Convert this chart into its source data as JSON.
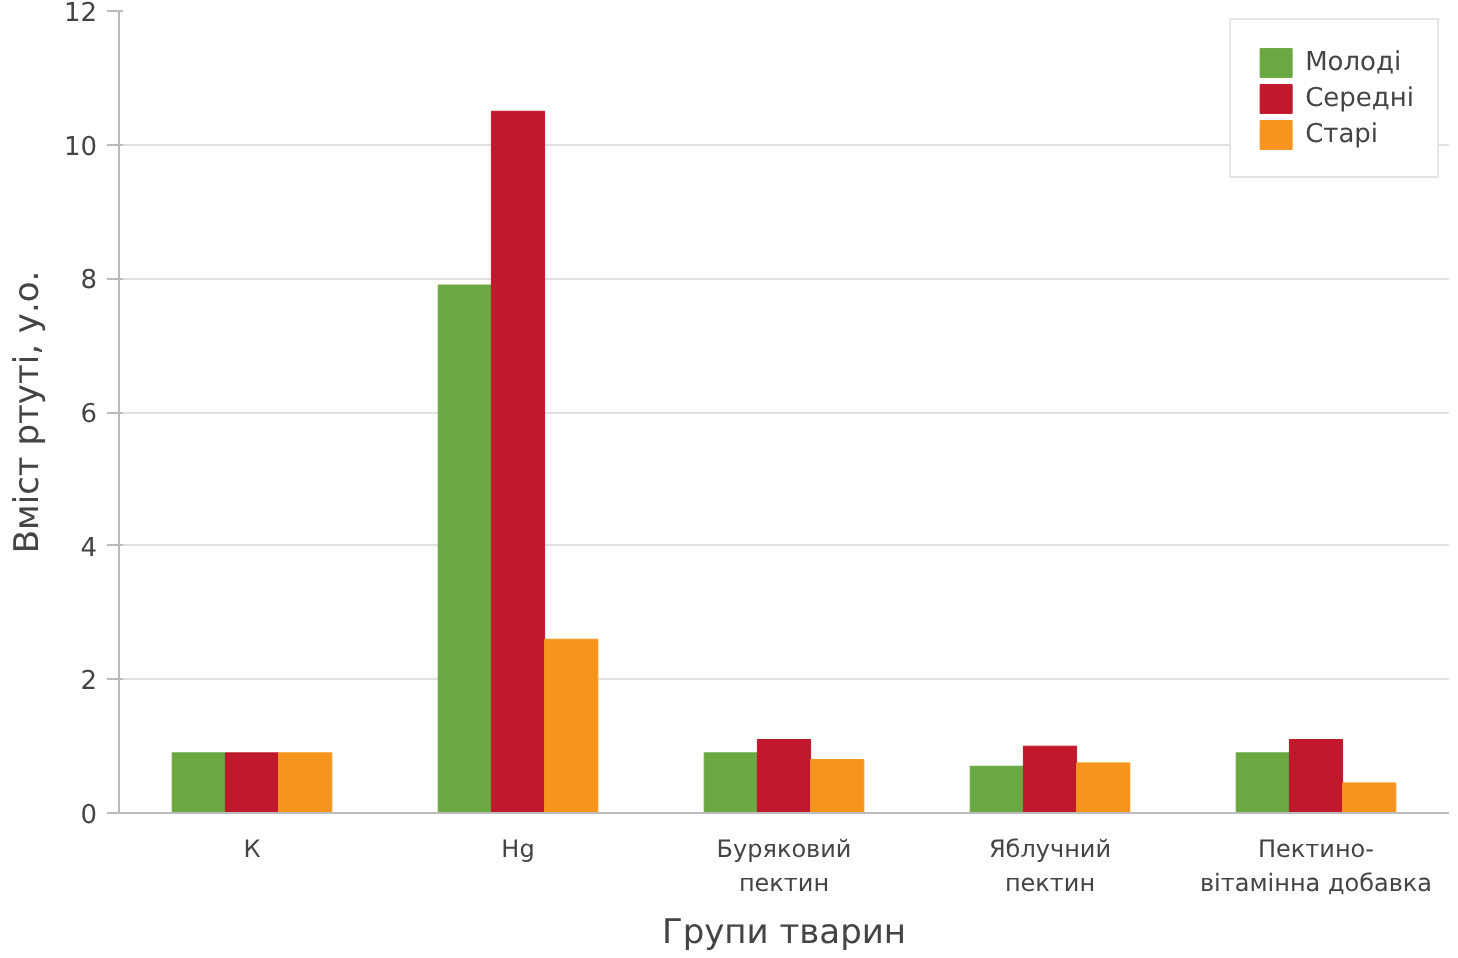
{
  "chart_data": {
    "type": "bar",
    "xlabel": "Групи тварин",
    "ylabel": "Вміст ртуті, у.о.",
    "categories": [
      "К",
      "Hg",
      "Буряковий\nпектин",
      "Яблучний\nпектин",
      "Пектино-\nвітамінна добавка"
    ],
    "series": [
      {
        "name": "Молоді",
        "color": "#6aa842",
        "values": [
          0.9,
          7.9,
          0.9,
          0.7,
          0.9
        ]
      },
      {
        "name": "Середні",
        "color": "#c0192c",
        "values": [
          0.9,
          10.5,
          1.1,
          1.0,
          1.1
        ]
      },
      {
        "name": "Старі",
        "color": "#f7941d",
        "values": [
          0.9,
          2.6,
          0.8,
          0.75,
          0.45
        ]
      }
    ],
    "ylim": [
      0,
      12
    ],
    "yticks": [
      0,
      2,
      4,
      6,
      8,
      10,
      12
    ],
    "grid": "y",
    "legend": "top right"
  }
}
